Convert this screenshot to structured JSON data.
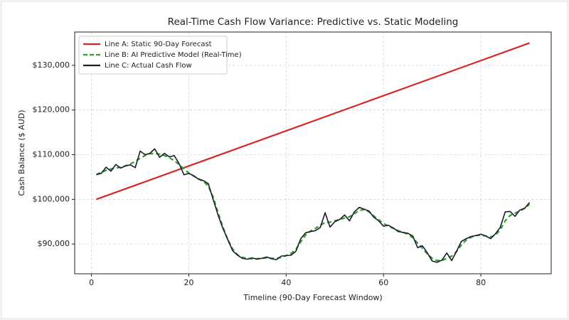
{
  "chart_data": {
    "type": "line",
    "title": "Real-Time Cash Flow Variance: Predictive vs. Static Modeling",
    "x_label": "Timeline (90-Day Forecast Window)",
    "y_label": "Cash Balance ($ AUD)",
    "x": [
      1,
      2,
      3,
      4,
      5,
      6,
      7,
      8,
      9,
      10,
      11,
      12,
      13,
      14,
      15,
      16,
      17,
      18,
      19,
      20,
      21,
      22,
      23,
      24,
      25,
      26,
      27,
      28,
      29,
      30,
      31,
      32,
      33,
      34,
      35,
      36,
      37,
      38,
      39,
      40,
      41,
      42,
      43,
      44,
      45,
      46,
      47,
      48,
      49,
      50,
      51,
      52,
      53,
      54,
      55,
      56,
      57,
      58,
      59,
      60,
      61,
      62,
      63,
      64,
      65,
      66,
      67,
      68,
      69,
      70,
      71,
      72,
      73,
      74,
      75,
      76,
      77,
      78,
      79,
      80,
      81,
      82,
      83,
      84,
      85,
      86,
      87,
      88,
      89,
      90
    ],
    "series": [
      {
        "name": "Line A: Static 90-Day Forecast",
        "color": "#d62728",
        "style": "solid",
        "x": [
          1,
          90
        ],
        "values": [
          100000,
          135000
        ]
      },
      {
        "name": "Line B: AI Predictive Model (Real-Time)",
        "color": "#2ca02c",
        "style": "dashed",
        "values": [
          105600,
          106000,
          106500,
          106800,
          107000,
          107200,
          107500,
          107900,
          108500,
          109200,
          109800,
          110200,
          110300,
          110100,
          109800,
          109300,
          108700,
          107800,
          106800,
          105900,
          105200,
          104600,
          104000,
          103000,
          100500,
          97000,
          93800,
          91000,
          88900,
          87600,
          87000,
          86800,
          86700,
          86700,
          86800,
          86900,
          86800,
          86800,
          87000,
          87400,
          87900,
          88800,
          90500,
          92000,
          92900,
          93500,
          94200,
          94800,
          94900,
          95200,
          95500,
          95800,
          96100,
          96800,
          97500,
          97700,
          97200,
          96300,
          95400,
          94600,
          94000,
          93500,
          93000,
          92600,
          92200,
          91400,
          90200,
          89000,
          87800,
          86800,
          86300,
          86300,
          86800,
          87300,
          88300,
          89800,
          90900,
          91500,
          91900,
          92000,
          91800,
          91600,
          92000,
          93200,
          95200,
          96400,
          96900,
          97400,
          98000,
          98900
        ]
      },
      {
        "name": "Line C: Actual Cash Flow",
        "color": "#1c1c2b",
        "style": "solid",
        "values": [
          105500,
          105800,
          107200,
          106300,
          107800,
          107000,
          107500,
          107700,
          107100,
          110800,
          110000,
          110300,
          111300,
          109400,
          110300,
          109500,
          109800,
          108000,
          105500,
          105800,
          105300,
          104500,
          104200,
          103500,
          100000,
          96500,
          93500,
          91000,
          88500,
          87500,
          86800,
          86600,
          86900,
          86600,
          86800,
          87100,
          86700,
          86500,
          87300,
          87400,
          87500,
          88400,
          91200,
          92500,
          92800,
          93000,
          93700,
          97000,
          93800,
          95000,
          95500,
          96500,
          95200,
          97200,
          98200,
          97800,
          97400,
          96000,
          95200,
          94000,
          94200,
          93600,
          92800,
          92600,
          92400,
          91800,
          89200,
          89600,
          88000,
          86200,
          85900,
          86400,
          88000,
          86300,
          88400,
          90600,
          91200,
          91700,
          91900,
          92200,
          91800,
          91200,
          92300,
          93800,
          97200,
          97300,
          96200,
          97600,
          98000,
          99300
        ]
      }
    ],
    "xlim": [
      -3.45,
      94.45
    ],
    "xticks": [
      0,
      20,
      40,
      60,
      80
    ],
    "ylim": [
      83340,
      137460
    ],
    "yticks": [
      {
        "value": 90000,
        "label": "$90,000"
      },
      {
        "value": 100000,
        "label": "$100,000"
      },
      {
        "value": 110000,
        "label": "$110,000"
      },
      {
        "value": 120000,
        "label": "$120,000"
      },
      {
        "value": 130000,
        "label": "$130,000"
      }
    ],
    "grid": true,
    "legend": "upper left"
  }
}
